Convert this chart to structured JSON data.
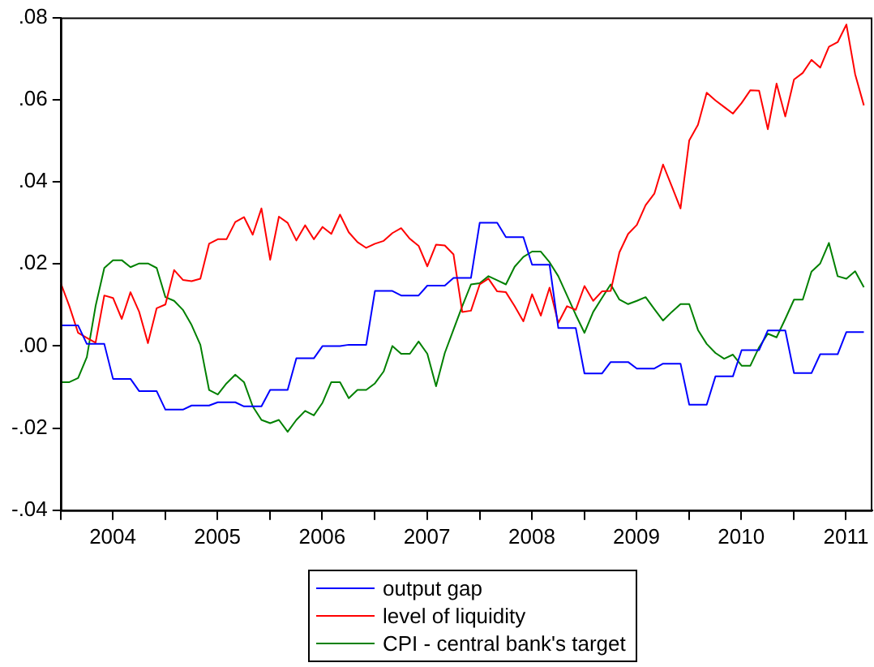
{
  "chart_data": {
    "type": "line",
    "legend": "bottom",
    "grid": false,
    "marker": "none",
    "line_style": "solid",
    "x": [
      "2004-01",
      "2004-02",
      "2004-03",
      "2004-04",
      "2004-05",
      "2004-06",
      "2004-07",
      "2004-08",
      "2004-09",
      "2004-10",
      "2004-11",
      "2004-12",
      "2005-01",
      "2005-02",
      "2005-03",
      "2005-04",
      "2005-05",
      "2005-06",
      "2005-07",
      "2005-08",
      "2005-09",
      "2005-10",
      "2005-11",
      "2005-12",
      "2006-01",
      "2006-02",
      "2006-03",
      "2006-04",
      "2006-05",
      "2006-06",
      "2006-07",
      "2006-08",
      "2006-09",
      "2006-10",
      "2006-11",
      "2006-12",
      "2007-01",
      "2007-02",
      "2007-03",
      "2007-04",
      "2007-05",
      "2007-06",
      "2007-07",
      "2007-08",
      "2007-09",
      "2007-10",
      "2007-11",
      "2007-12",
      "2008-01",
      "2008-02",
      "2008-03",
      "2008-04",
      "2008-05",
      "2008-06",
      "2008-07",
      "2008-08",
      "2008-09",
      "2008-10",
      "2008-11",
      "2008-12",
      "2009-01",
      "2009-02",
      "2009-03",
      "2009-04",
      "2009-05",
      "2009-06",
      "2009-07",
      "2009-08",
      "2009-09",
      "2009-10",
      "2009-11",
      "2009-12",
      "2010-01",
      "2010-02",
      "2010-03",
      "2010-04",
      "2010-05",
      "2010-06",
      "2010-07",
      "2010-08",
      "2010-09",
      "2010-10",
      "2010-11",
      "2010-12",
      "2011-01",
      "2011-02",
      "2011-03",
      "2011-04",
      "2011-05",
      "2011-06",
      "2011-07",
      "2011-08",
      "2011-09"
    ],
    "xlim": [
      "2004-01-01",
      "2011-10-01"
    ],
    "xticks": [
      {
        "value": "2004-01-01",
        "label": null
      },
      {
        "value": "2004-07-01",
        "label": "2004"
      },
      {
        "value": "2005-01-01",
        "label": null
      },
      {
        "value": "2005-07-01",
        "label": "2005"
      },
      {
        "value": "2006-01-01",
        "label": null
      },
      {
        "value": "2006-07-01",
        "label": "2006"
      },
      {
        "value": "2007-01-01",
        "label": null
      },
      {
        "value": "2007-07-01",
        "label": "2007"
      },
      {
        "value": "2008-01-01",
        "label": null
      },
      {
        "value": "2008-07-01",
        "label": "2008"
      },
      {
        "value": "2009-01-01",
        "label": null
      },
      {
        "value": "2009-07-01",
        "label": "2009"
      },
      {
        "value": "2010-01-01",
        "label": null
      },
      {
        "value": "2010-07-01",
        "label": "2010"
      },
      {
        "value": "2011-01-01",
        "label": null
      },
      {
        "value": "2011-07-01",
        "label": "2011"
      }
    ],
    "ylim": [
      -0.04,
      0.08
    ],
    "yticks": [
      {
        "value": -0.04,
        "label": "-.04"
      },
      {
        "value": -0.02,
        "label": "-.02"
      },
      {
        "value": 0,
        "label": ".00"
      },
      {
        "value": 0.02,
        "label": ".02"
      },
      {
        "value": 0.04,
        "label": ".04"
      },
      {
        "value": 0.06,
        "label": ".06"
      },
      {
        "value": 0.08,
        "label": ".08"
      }
    ],
    "series": [
      {
        "name": "output gap",
        "color": "#0000ff",
        "values": [
          0.005,
          0.005,
          0.005,
          0.0005,
          0.0005,
          0.0005,
          -0.008,
          -0.008,
          -0.008,
          -0.011,
          -0.011,
          -0.011,
          -0.0155,
          -0.0155,
          -0.0155,
          -0.0145,
          -0.0145,
          -0.0145,
          -0.0137,
          -0.0137,
          -0.0137,
          -0.0147,
          -0.0147,
          -0.0147,
          -0.0107,
          -0.0107,
          -0.0107,
          -0.003,
          -0.003,
          -0.003,
          0,
          0,
          0,
          0.0003,
          0.0003,
          0.0003,
          0.0134,
          0.0134,
          0.0134,
          0.0123,
          0.0123,
          0.0123,
          0.0147,
          0.0147,
          0.0147,
          0.0166,
          0.0166,
          0.0166,
          0.03,
          0.03,
          0.03,
          0.0265,
          0.0265,
          0.0265,
          0.0198,
          0.0198,
          0.0198,
          0.0044,
          0.0044,
          0.0044,
          -0.0067,
          -0.0067,
          -0.0067,
          -0.0039,
          -0.0039,
          -0.0039,
          -0.0055,
          -0.0055,
          -0.0055,
          -0.0043,
          -0.0043,
          -0.0043,
          -0.0143,
          -0.0143,
          -0.0143,
          -0.0074,
          -0.0074,
          -0.0074,
          -0.001,
          -0.001,
          -0.001,
          0.0038,
          0.0038,
          0.0038,
          -0.0066,
          -0.0066,
          -0.0066,
          -0.002,
          -0.002,
          -0.002,
          0.0034,
          0.0034,
          0.0034
        ]
      },
      {
        "name": "level of liquidity",
        "color": "#ff0000",
        "values": [
          0.0154,
          0.0097,
          0.0032,
          0.002,
          0.0008,
          0.0123,
          0.0117,
          0.0066,
          0.0131,
          0.0083,
          0.0007,
          0.0092,
          0.0101,
          0.0185,
          0.0161,
          0.0158,
          0.0164,
          0.0249,
          0.026,
          0.026,
          0.0302,
          0.0314,
          0.0271,
          0.0335,
          0.021,
          0.0315,
          0.03,
          0.0257,
          0.0294,
          0.026,
          0.029,
          0.0273,
          0.032,
          0.0277,
          0.0253,
          0.0239,
          0.0249,
          0.0256,
          0.0275,
          0.0287,
          0.0261,
          0.0244,
          0.0194,
          0.0247,
          0.0245,
          0.0223,
          0.0083,
          0.0086,
          0.015,
          0.0164,
          0.0133,
          0.0131,
          0.0097,
          0.006,
          0.0126,
          0.0074,
          0.0142,
          0.0056,
          0.0097,
          0.0088,
          0.0146,
          0.011,
          0.0133,
          0.0134,
          0.0228,
          0.0273,
          0.0295,
          0.0343,
          0.0371,
          0.0442,
          0.0389,
          0.0335,
          0.0501,
          0.0539,
          0.0617,
          0.0598,
          0.0582,
          0.0566,
          0.0592,
          0.0623,
          0.0622,
          0.0528,
          0.0639,
          0.0559,
          0.0649,
          0.0665,
          0.0697,
          0.0678,
          0.0729,
          0.074,
          0.0783,
          0.0662,
          0.0586
        ]
      },
      {
        "name": "CPI - central bank's target",
        "color": "#008000",
        "values": [
          -0.0088,
          -0.0088,
          -0.0078,
          -0.0027,
          0.0097,
          0.019,
          0.0209,
          0.0209,
          0.0192,
          0.0201,
          0.0201,
          0.019,
          0.0119,
          0.011,
          0.0088,
          0.0051,
          0.0003,
          -0.0107,
          -0.0118,
          -0.0091,
          -0.007,
          -0.0088,
          -0.0147,
          -0.018,
          -0.0188,
          -0.018,
          -0.0209,
          -0.018,
          -0.0158,
          -0.0169,
          -0.0138,
          -0.0088,
          -0.0088,
          -0.0127,
          -0.0107,
          -0.0107,
          -0.0091,
          -0.0062,
          0,
          -0.0019,
          -0.0019,
          0.0011,
          -0.0019,
          -0.0098,
          -0.0017,
          0.004,
          0.0097,
          0.015,
          0.0153,
          0.017,
          0.016,
          0.015,
          0.0193,
          0.0217,
          0.023,
          0.023,
          0.0204,
          0.017,
          0.0123,
          0.0076,
          0.0032,
          0.0083,
          0.0117,
          0.015,
          0.0113,
          0.0102,
          0.011,
          0.0119,
          0.009,
          0.0062,
          0.0083,
          0.0102,
          0.0102,
          0.0039,
          0.0005,
          -0.0017,
          -0.0031,
          -0.0021,
          -0.0048,
          -0.0048,
          -0.0003,
          0.003,
          0.0021,
          0.0066,
          0.0113,
          0.0113,
          0.0181,
          0.0201,
          0.0251,
          0.017,
          0.0164,
          0.0182,
          0.0143
        ]
      }
    ]
  }
}
